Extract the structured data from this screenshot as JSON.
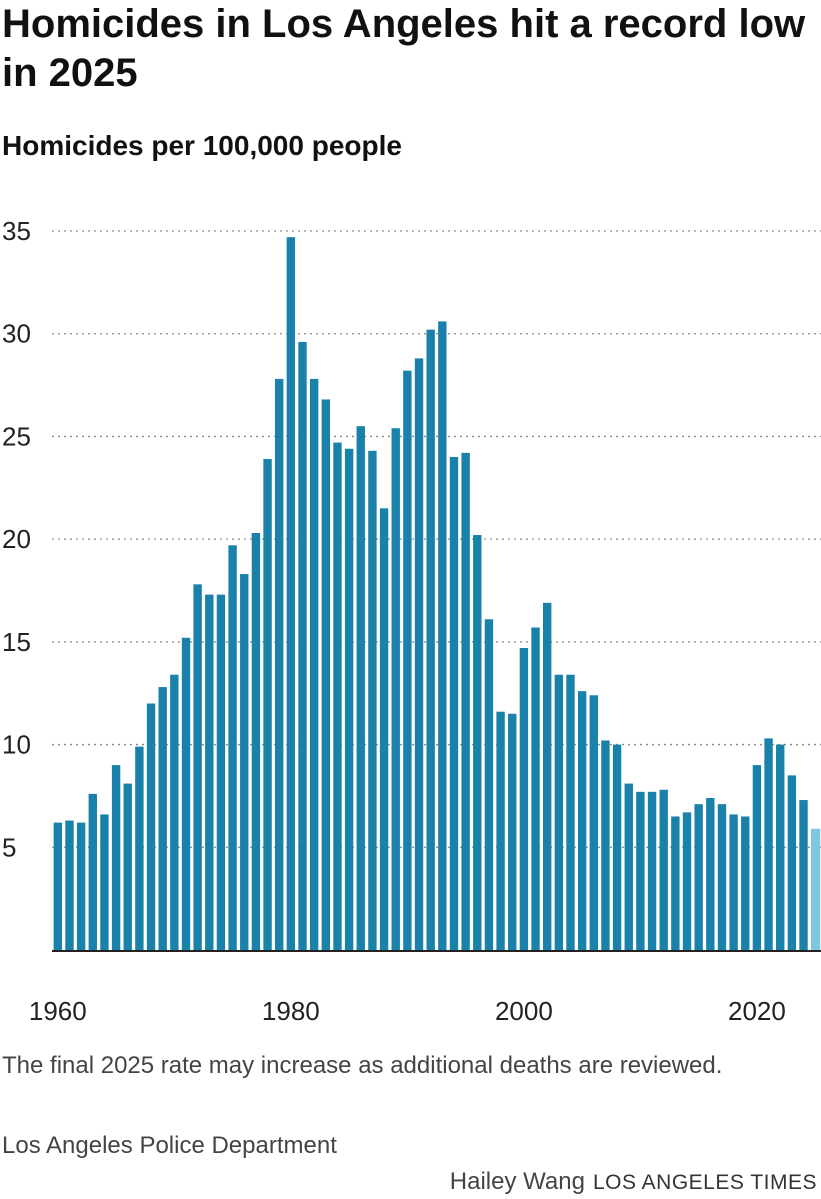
{
  "title": "Homicides in Los Angeles hit a record low in 2025",
  "subtitle": "Homicides per 100,000 people",
  "note": "The final 2025 rate may increase as additional deaths are reviewed.",
  "source": "Los Angeles Police Department",
  "credit": {
    "author": "Hailey Wang",
    "organization": "LOS ANGELES TIMES"
  },
  "colors": {
    "bar": "#1a82aa",
    "highlight": "#7fc6e0",
    "grid": "#8a8a8a",
    "axis": "#222222"
  },
  "chart_data": {
    "type": "bar",
    "ylim": [
      0,
      35
    ],
    "y_ticks": [
      5,
      10,
      15,
      20,
      25,
      30,
      35
    ],
    "x_ticks": [
      1960,
      1980,
      2000,
      2020
    ],
    "grid": true,
    "highlight_year": 2025,
    "x": [
      1960,
      1961,
      1962,
      1963,
      1964,
      1965,
      1966,
      1967,
      1968,
      1969,
      1970,
      1971,
      1972,
      1973,
      1974,
      1975,
      1976,
      1977,
      1978,
      1979,
      1980,
      1981,
      1982,
      1983,
      1984,
      1985,
      1986,
      1987,
      1988,
      1989,
      1990,
      1991,
      1992,
      1993,
      1994,
      1995,
      1996,
      1997,
      1998,
      1999,
      2000,
      2001,
      2002,
      2003,
      2004,
      2005,
      2006,
      2007,
      2008,
      2009,
      2010,
      2011,
      2012,
      2013,
      2014,
      2015,
      2016,
      2017,
      2018,
      2019,
      2020,
      2021,
      2022,
      2023,
      2024,
      2025
    ],
    "values": [
      6.2,
      6.3,
      6.2,
      7.6,
      6.6,
      9.0,
      8.1,
      9.9,
      12.0,
      12.8,
      13.4,
      15.2,
      17.8,
      17.3,
      17.3,
      19.7,
      18.3,
      20.3,
      23.9,
      27.8,
      34.7,
      29.6,
      27.8,
      26.8,
      24.7,
      24.4,
      25.5,
      24.3,
      21.5,
      25.4,
      28.2,
      28.8,
      30.2,
      30.6,
      24.0,
      24.2,
      20.2,
      16.1,
      11.6,
      11.5,
      14.7,
      15.7,
      16.9,
      13.4,
      13.4,
      12.6,
      12.4,
      10.2,
      10.0,
      8.1,
      7.7,
      7.7,
      7.8,
      6.5,
      6.7,
      7.1,
      7.4,
      7.1,
      6.6,
      6.5,
      9.0,
      10.3,
      10.0,
      8.5,
      7.3,
      5.9
    ]
  }
}
